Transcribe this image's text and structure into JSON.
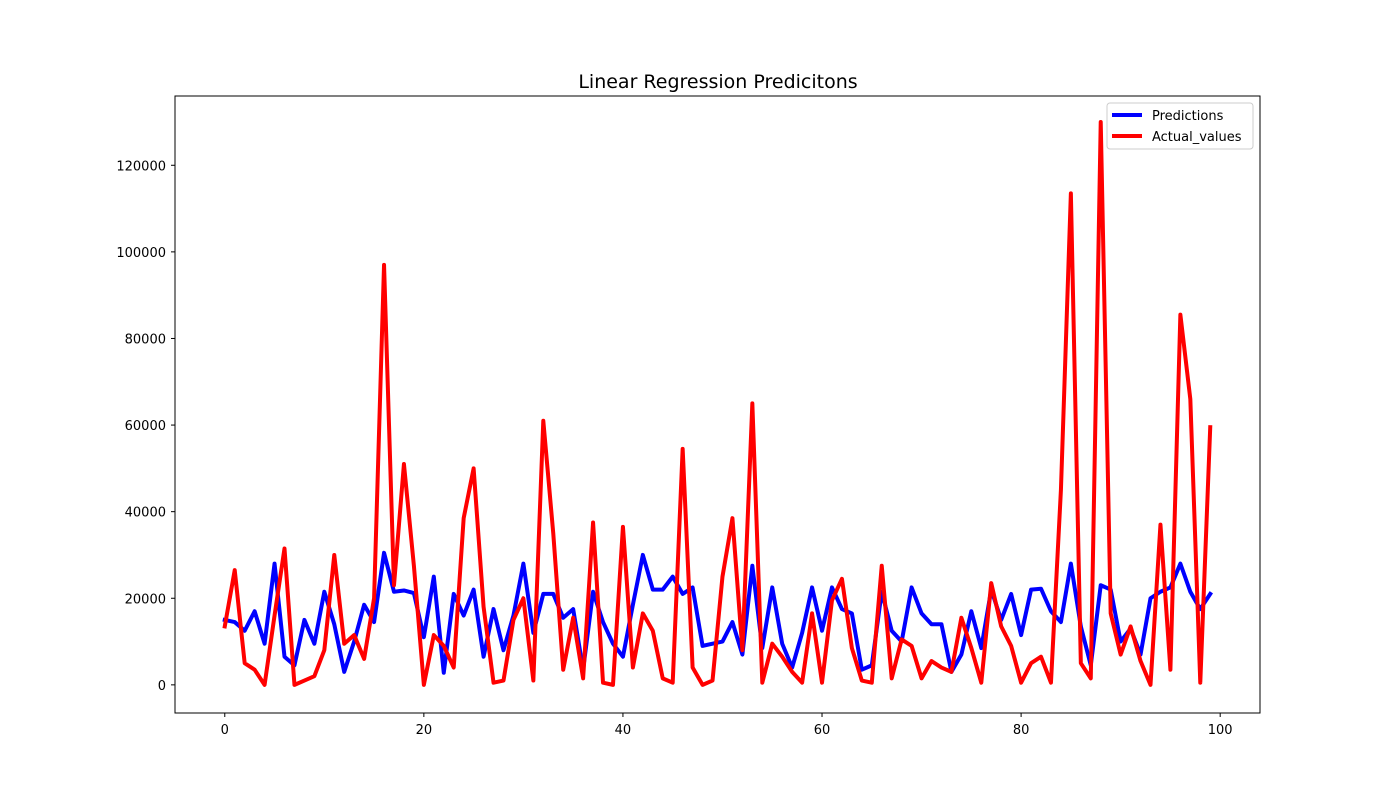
{
  "chart_data": {
    "type": "line",
    "title": "Linear Regression Predicitons",
    "xlabel": "",
    "ylabel": "",
    "xlim": [
      -5,
      104
    ],
    "ylim": [
      -6500,
      136000
    ],
    "xticks": [
      0,
      20,
      40,
      60,
      80,
      100
    ],
    "yticks": [
      0,
      20000,
      40000,
      60000,
      80000,
      100000,
      120000
    ],
    "grid": false,
    "legend_position": "top-right",
    "series": [
      {
        "name": "Predictions",
        "color": "#0000ff",
        "values": [
          15000,
          14500,
          12500,
          17000,
          9500,
          28000,
          6500,
          4500,
          15000,
          9500,
          21500,
          14000,
          3000,
          10000,
          18500,
          14500,
          30500,
          21500,
          21800,
          21200,
          11000,
          25000,
          2800,
          21000,
          16000,
          22000,
          6500,
          17500,
          8000,
          16000,
          28000,
          12000,
          21000,
          21000,
          15500,
          17500,
          3500,
          21500,
          14500,
          9500,
          6500,
          18500,
          30000,
          22000,
          22000,
          25000,
          21000,
          22500,
          9000,
          9500,
          10000,
          14500,
          7000,
          27500,
          8500,
          22500,
          9500,
          4000,
          12000,
          22500,
          12500,
          22500,
          17500,
          16500,
          3500,
          4500,
          21500,
          12500,
          10000,
          22500,
          16500,
          14000,
          14000,
          3000,
          7000,
          17000,
          8500,
          22000,
          15000,
          21000,
          11500,
          22000,
          22200,
          17000,
          14500,
          28000,
          13500,
          4500,
          23000,
          22000,
          10000,
          13000,
          7000,
          20000,
          21500,
          22500,
          28000,
          21500,
          17500,
          21000
        ]
      },
      {
        "name": "Actual_values",
        "color": "#ff0000",
        "values": [
          13500,
          26500,
          5000,
          3500,
          0,
          16000,
          31500,
          0,
          1000,
          2000,
          8000,
          30000,
          9500,
          11500,
          6000,
          20000,
          97000,
          23000,
          51000,
          27500,
          0,
          11500,
          9000,
          4000,
          38500,
          50000,
          18000,
          500,
          1000,
          15000,
          20000,
          1000,
          61000,
          35000,
          3500,
          15500,
          1500,
          37500,
          500,
          0,
          36500,
          4000,
          16500,
          12500,
          1500,
          500,
          54500,
          4000,
          0,
          1000,
          25000,
          38500,
          8000,
          65000,
          500,
          9500,
          6500,
          3000,
          500,
          16500,
          500,
          19500,
          24500,
          8500,
          1000,
          500,
          27500,
          1500,
          10500,
          9000,
          1500,
          5500,
          4000,
          3000,
          15500,
          8500,
          500,
          23500,
          13500,
          9000,
          500,
          5000,
          6500,
          500,
          45000,
          113500,
          5000,
          1500,
          130000,
          16500,
          7000,
          13500,
          5500,
          0,
          37000,
          3500,
          85500,
          66000,
          500,
          59500
        ]
      }
    ]
  }
}
